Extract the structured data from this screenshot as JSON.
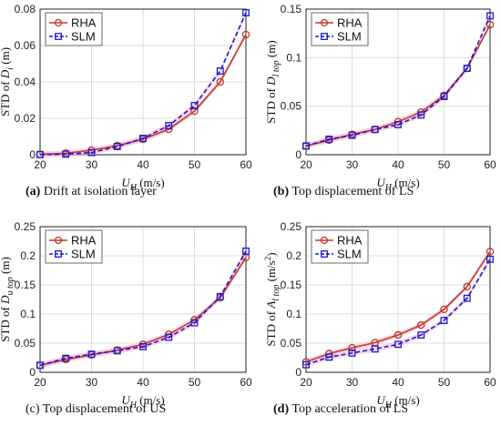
{
  "colors": {
    "rha": "#c0392b",
    "slm": "#1a1ad6",
    "band": "#f6b7d0"
  },
  "chart_data": [
    {
      "type": "line",
      "x": [
        20,
        25,
        30,
        35,
        40,
        45,
        50,
        55,
        60
      ],
      "xlim": [
        20,
        60
      ],
      "xticks": [
        "20",
        "30",
        "40",
        "50",
        "60"
      ],
      "ylim": [
        0,
        0.08
      ],
      "yticks": [
        "0",
        "0.02",
        "0.04",
        "0.06",
        "0.08"
      ],
      "ylabel": {
        "pre": "STD  of  ",
        "sym": "D",
        "sub": "i",
        "unit": " (m)"
      },
      "xlabel": {
        "sym": "U",
        "sub": "H",
        "unit": "  (m/s)"
      },
      "legend": "top-left",
      "caption": {
        "tag": "(a)",
        "text": " Drift at isolation layer"
      },
      "series": [
        {
          "name": "RHA",
          "values": [
            0.0002,
            0.0008,
            0.0025,
            0.005,
            0.0085,
            0.014,
            0.024,
            0.04,
            0.066
          ]
        },
        {
          "name": "SLM",
          "values": [
            0.0001,
            0.0003,
            0.0012,
            0.0045,
            0.009,
            0.016,
            0.027,
            0.046,
            0.078
          ]
        }
      ]
    },
    {
      "type": "line",
      "x": [
        20,
        25,
        30,
        35,
        40,
        45,
        50,
        55,
        60
      ],
      "xlim": [
        20,
        60
      ],
      "xticks": [
        "20",
        "30",
        "40",
        "50",
        "60"
      ],
      "ylim": [
        0,
        0.15
      ],
      "yticks": [
        "0",
        "0.05",
        "0.1",
        "0.15"
      ],
      "ylabel": {
        "pre": "STD  of  ",
        "sym": "D",
        "sub": "l top",
        "unit": " (m)"
      },
      "xlabel": {
        "sym": "U",
        "sub": "H",
        "unit": "  (m/s)"
      },
      "legend": "top-left",
      "caption": {
        "tag": "(b)",
        "text": " Top displacement of LS"
      },
      "series": [
        {
          "name": "RHA",
          "values": [
            0.009,
            0.015,
            0.021,
            0.026,
            0.034,
            0.044,
            0.061,
            0.089,
            0.134
          ]
        },
        {
          "name": "SLM",
          "values": [
            0.009,
            0.016,
            0.02,
            0.026,
            0.031,
            0.041,
            0.06,
            0.089,
            0.143
          ]
        }
      ]
    },
    {
      "type": "line",
      "x": [
        20,
        25,
        30,
        35,
        40,
        45,
        50,
        55,
        60
      ],
      "xlim": [
        20,
        60
      ],
      "xticks": [
        "20",
        "30",
        "40",
        "50",
        "60"
      ],
      "ylim": [
        0,
        0.25
      ],
      "yticks": [
        "0",
        "0.05",
        "0.1",
        "0.15",
        "0.2",
        "0.25"
      ],
      "ylabel": {
        "pre": "STD  of  ",
        "sym": "D",
        "sub": "u top",
        "unit": " (m)"
      },
      "xlabel": {
        "sym": "U",
        "sub": "H",
        "unit": "  (m/s)"
      },
      "legend": "top-left",
      "caption": {
        "tag": "",
        "text": "(c) Top displacement of US"
      },
      "series": [
        {
          "name": "RHA",
          "values": [
            0.012,
            0.022,
            0.03,
            0.038,
            0.048,
            0.065,
            0.09,
            0.128,
            0.197
          ]
        },
        {
          "name": "SLM",
          "values": [
            0.012,
            0.024,
            0.031,
            0.037,
            0.044,
            0.06,
            0.085,
            0.13,
            0.208
          ]
        }
      ]
    },
    {
      "type": "line",
      "x": [
        20,
        25,
        30,
        35,
        40,
        45,
        50,
        55,
        60
      ],
      "xlim": [
        20,
        60
      ],
      "xticks": [
        "20",
        "30",
        "40",
        "50",
        "60"
      ],
      "ylim": [
        0,
        0.25
      ],
      "yticks": [
        "0",
        "0.05",
        "0.1",
        "0.15",
        "0.2",
        "0.25"
      ],
      "ylabel": {
        "pre": "STD  of  ",
        "sym": "A",
        "sub": "l top",
        "unit": " (m/s",
        "sup": "2",
        "close": ")"
      },
      "xlabel": {
        "sym": "U",
        "sub": "H",
        "unit": "  (m/s)"
      },
      "legend": "top-left",
      "caption": {
        "tag": "(d)",
        "text": " Top acceleration of LS"
      },
      "series": [
        {
          "name": "RHA",
          "values": [
            0.018,
            0.032,
            0.042,
            0.051,
            0.064,
            0.081,
            0.108,
            0.147,
            0.207
          ]
        },
        {
          "name": "SLM",
          "values": [
            0.013,
            0.026,
            0.033,
            0.04,
            0.048,
            0.064,
            0.089,
            0.127,
            0.194
          ]
        }
      ]
    }
  ]
}
